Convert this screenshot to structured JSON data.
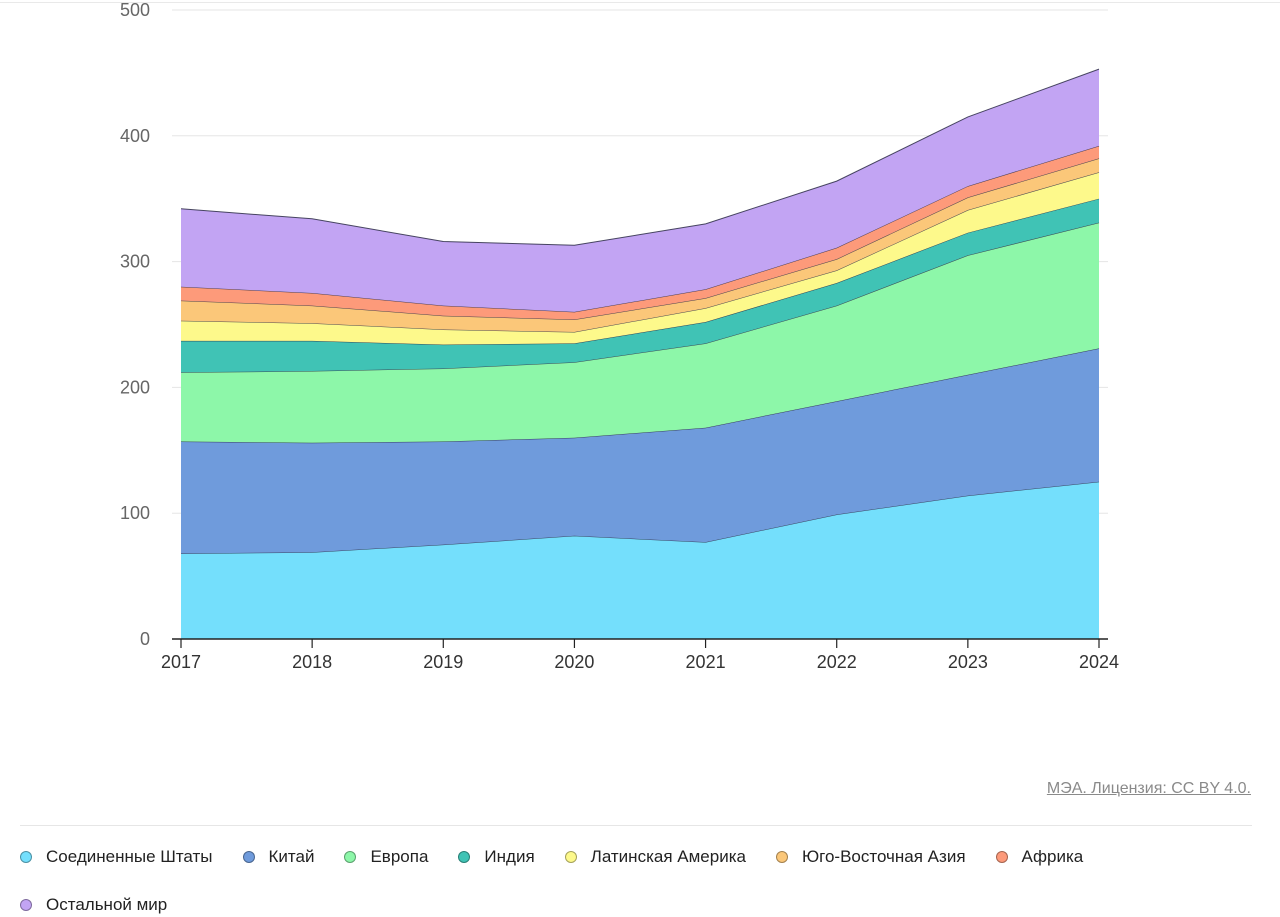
{
  "chart_data": {
    "type": "area",
    "stacked": true,
    "x": [
      "2017",
      "2018",
      "2019",
      "2020",
      "2021",
      "2022",
      "2023",
      "2024"
    ],
    "ylim": [
      0,
      500
    ],
    "yticks": [
      "0",
      "100",
      "200",
      "300",
      "400",
      "500"
    ],
    "grid": true,
    "legend_position": "bottom",
    "series": [
      {
        "name": "Соединенные Штаты",
        "color": "#74dffc",
        "values": [
          68,
          69,
          75,
          82,
          77,
          99,
          114,
          125
        ]
      },
      {
        "name": "Китай",
        "color": "#6f9bdc",
        "values": [
          89,
          87,
          82,
          78,
          91,
          90,
          96,
          106
        ]
      },
      {
        "name": "Европа",
        "color": "#8df7a9",
        "values": [
          55,
          57,
          58,
          60,
          67,
          76,
          95,
          100
        ]
      },
      {
        "name": "Индия",
        "color": "#40c3b5",
        "values": [
          25,
          24,
          19,
          15,
          17,
          18,
          18,
          19
        ]
      },
      {
        "name": "Латинская Америка",
        "color": "#fdf98b",
        "values": [
          16,
          14,
          12,
          9,
          11,
          10,
          18,
          21
        ]
      },
      {
        "name": "Юго-Восточная Азия",
        "color": "#fbc779",
        "values": [
          16,
          14,
          11,
          10,
          8,
          9,
          10,
          11
        ]
      },
      {
        "name": "Африка",
        "color": "#fd9a7a",
        "values": [
          11,
          10,
          8,
          6,
          7,
          9,
          9,
          10
        ]
      },
      {
        "name": "Остальной мир",
        "color": "#c2a4f3",
        "values": [
          62,
          59,
          51,
          53,
          52,
          53,
          55,
          61
        ]
      }
    ]
  },
  "source_text": "МЭА. Лицензия: CC BY 4.0."
}
